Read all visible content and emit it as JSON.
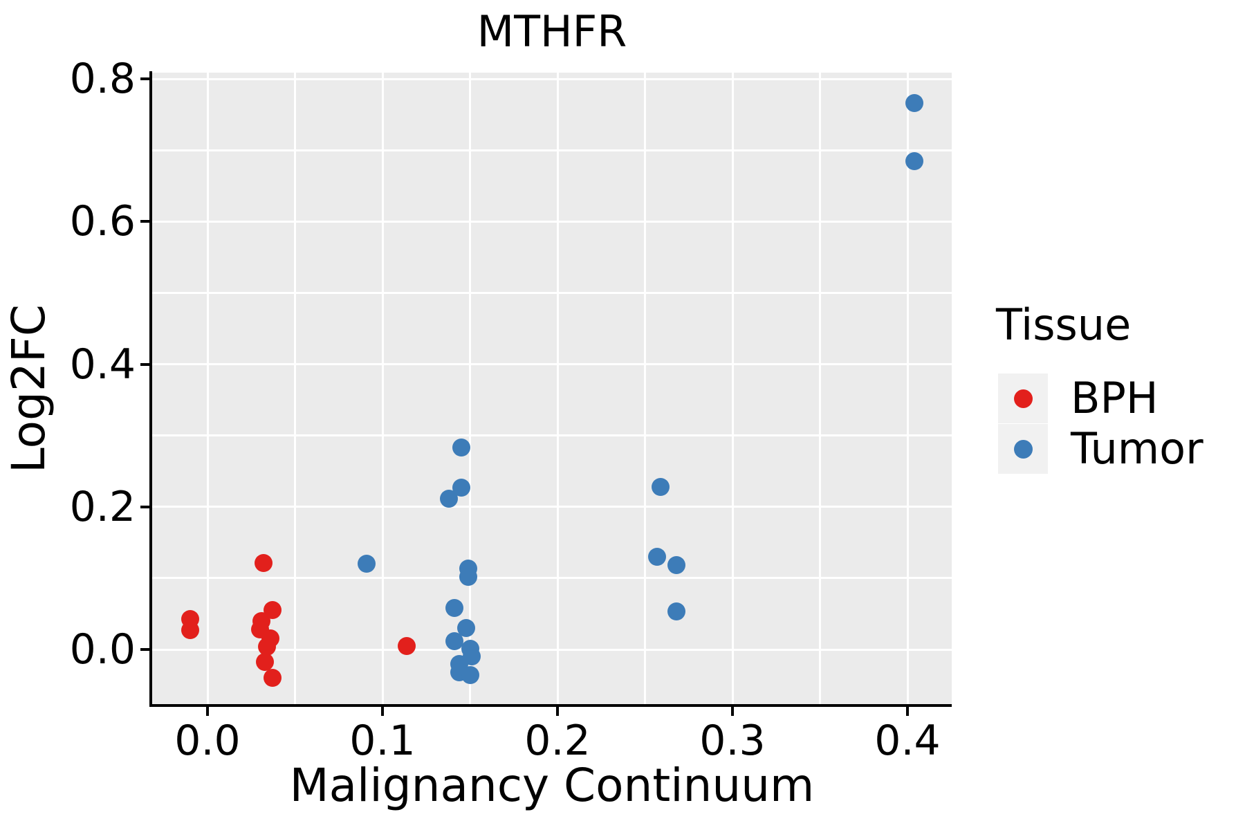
{
  "chart_data": {
    "type": "scatter",
    "title": "MTHFR",
    "xlabel": "Malignancy Continuum",
    "ylabel": "Log2FC",
    "xlim": [
      -0.033,
      0.427
    ],
    "ylim": [
      -0.079,
      0.806
    ],
    "grid": "on",
    "x_ticks": [
      {
        "value": 0.0,
        "label": "0.0"
      },
      {
        "value": 0.1,
        "label": "0.1"
      },
      {
        "value": 0.2,
        "label": "0.2"
      },
      {
        "value": 0.3,
        "label": "0.3"
      },
      {
        "value": 0.4,
        "label": "0.4"
      }
    ],
    "y_ticks": [
      {
        "value": 0.0,
        "label": "0.0"
      },
      {
        "value": 0.2,
        "label": "0.2"
      },
      {
        "value": 0.4,
        "label": "0.4"
      },
      {
        "value": 0.6,
        "label": "0.6"
      },
      {
        "value": 0.8,
        "label": "0.8"
      }
    ],
    "x_minor_ticks": [
      0.05,
      0.15,
      0.25,
      0.35
    ],
    "y_minor_ticks": [
      0.1,
      0.3,
      0.5,
      0.7
    ],
    "legend": {
      "title": "Tissue",
      "position": "right"
    },
    "series": [
      {
        "name": "BPH",
        "color": "#E2201C",
        "points": [
          [
            -0.01,
            0.043
          ],
          [
            -0.01,
            0.027
          ],
          [
            0.032,
            0.121
          ],
          [
            0.037,
            0.055
          ],
          [
            0.031,
            0.04
          ],
          [
            0.03,
            0.028
          ],
          [
            0.036,
            0.016
          ],
          [
            0.034,
            0.004
          ],
          [
            0.033,
            -0.017
          ],
          [
            0.037,
            -0.04
          ],
          [
            0.114,
            0.005
          ]
        ]
      },
      {
        "name": "Tumor",
        "color": "#3D7CB8",
        "points": [
          [
            0.091,
            0.12
          ],
          [
            0.145,
            0.283
          ],
          [
            0.145,
            0.227
          ],
          [
            0.138,
            0.211
          ],
          [
            0.149,
            0.113
          ],
          [
            0.149,
            0.102
          ],
          [
            0.141,
            0.058
          ],
          [
            0.148,
            0.03
          ],
          [
            0.141,
            0.012
          ],
          [
            0.15,
            0.001
          ],
          [
            0.151,
            -0.01
          ],
          [
            0.144,
            -0.02
          ],
          [
            0.144,
            -0.032
          ],
          [
            0.15,
            -0.036
          ],
          [
            0.259,
            0.228
          ],
          [
            0.257,
            0.13
          ],
          [
            0.268,
            0.118
          ],
          [
            0.268,
            0.053
          ],
          [
            0.404,
            0.766
          ],
          [
            0.404,
            0.685
          ]
        ]
      }
    ],
    "style": {
      "panel_bg": "#EBEBEB",
      "grid_color": "#FFFFFF",
      "legend_key_bg": "#F1F1F1",
      "text_color": "#000000"
    }
  }
}
